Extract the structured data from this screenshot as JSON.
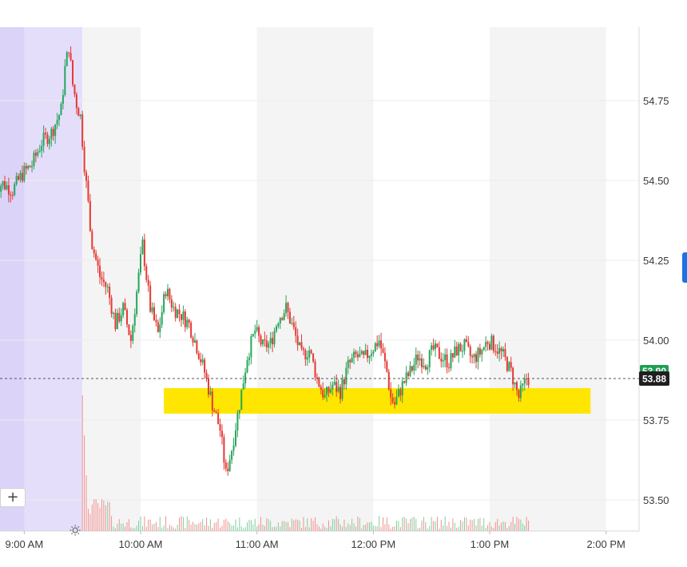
{
  "chart_data": {
    "type": "candlestick",
    "x_tick_labels": [
      "9:00 AM",
      "10:00 AM",
      "11:00 AM",
      "12:00 PM",
      "1:00 PM",
      "2:00 PM"
    ],
    "y_tick_labels": [
      "54.75",
      "54.50",
      "54.25",
      "54.00",
      "53.75",
      "53.50"
    ],
    "y_ticks": [
      54.75,
      54.5,
      54.25,
      54.0,
      53.75,
      53.5
    ],
    "ylim": [
      53.4,
      55.0
    ],
    "time_range": [
      "8:45 AM",
      "2:05 PM"
    ],
    "premarket_end": "9:30 AM",
    "current_price": "53.88",
    "current_price_value": 53.88,
    "upper_price_tag": "53.90",
    "highlight_zone": {
      "low": 53.77,
      "high": 53.85,
      "start": "10:12 AM",
      "end": "1:52 PM"
    },
    "price_path": [
      [
        "8:45 AM",
        54.48
      ],
      [
        "8:50 AM",
        54.49
      ],
      [
        "8:55 AM",
        54.47
      ],
      [
        "9:00 AM",
        54.52
      ],
      [
        "9:05 AM",
        54.55
      ],
      [
        "9:10 AM",
        54.62
      ],
      [
        "9:15 AM",
        54.65
      ],
      [
        "9:20 AM",
        54.72
      ],
      [
        "9:22 AM",
        54.85
      ],
      [
        "9:24 AM",
        54.92
      ],
      [
        "9:26 AM",
        54.8
      ],
      [
        "9:28 AM",
        54.74
      ],
      [
        "9:30 AM",
        54.7
      ],
      [
        "9:32 AM",
        54.55
      ],
      [
        "9:36 AM",
        54.3
      ],
      [
        "9:40 AM",
        54.2
      ],
      [
        "9:44 AM",
        54.16
      ],
      [
        "9:48 AM",
        54.05
      ],
      [
        "9:52 AM",
        54.1
      ],
      [
        "9:56 AM",
        54.0
      ],
      [
        "10:00 AM",
        54.2
      ],
      [
        "10:02 AM",
        54.3
      ],
      [
        "10:06 AM",
        54.1
      ],
      [
        "10:10 AM",
        54.02
      ],
      [
        "10:14 AM",
        54.16
      ],
      [
        "10:18 AM",
        54.1
      ],
      [
        "10:22 AM",
        54.08
      ],
      [
        "10:26 AM",
        54.05
      ],
      [
        "10:30 AM",
        53.98
      ],
      [
        "10:34 AM",
        53.9
      ],
      [
        "10:38 AM",
        53.8
      ],
      [
        "10:42 AM",
        53.72
      ],
      [
        "10:45 AM",
        53.58
      ],
      [
        "10:48 AM",
        53.66
      ],
      [
        "10:52 AM",
        53.8
      ],
      [
        "10:56 AM",
        53.95
      ],
      [
        "11:00 AM",
        54.03
      ],
      [
        "11:04 AM",
        53.98
      ],
      [
        "11:08 AM",
        53.99
      ],
      [
        "11:12 AM",
        54.07
      ],
      [
        "11:16 AM",
        54.1
      ],
      [
        "11:20 AM",
        54.03
      ],
      [
        "11:24 AM",
        53.95
      ],
      [
        "11:28 AM",
        53.97
      ],
      [
        "11:32 AM",
        53.88
      ],
      [
        "11:36 AM",
        53.82
      ],
      [
        "11:40 AM",
        53.86
      ],
      [
        "11:44 AM",
        53.84
      ],
      [
        "11:48 AM",
        53.92
      ],
      [
        "11:52 AM",
        53.95
      ],
      [
        "11:56 AM",
        53.94
      ],
      [
        "12:00 PM",
        53.97
      ],
      [
        "12:04 PM",
        54.0
      ],
      [
        "12:08 PM",
        53.9
      ],
      [
        "12:10 PM",
        53.82
      ],
      [
        "12:12 PM",
        53.8
      ],
      [
        "12:16 PM",
        53.86
      ],
      [
        "12:20 PM",
        53.9
      ],
      [
        "12:24 PM",
        53.95
      ],
      [
        "12:28 PM",
        53.93
      ],
      [
        "12:32 PM",
        53.97
      ],
      [
        "12:36 PM",
        53.95
      ],
      [
        "12:40 PM",
        53.93
      ],
      [
        "12:44 PM",
        53.97
      ],
      [
        "12:48 PM",
        53.98
      ],
      [
        "12:52 PM",
        53.94
      ],
      [
        "12:56 PM",
        53.96
      ],
      [
        "1:00 PM",
        54.0
      ],
      [
        "1:04 PM",
        53.98
      ],
      [
        "1:08 PM",
        53.95
      ],
      [
        "1:12 PM",
        53.9
      ],
      [
        "1:16 PM",
        53.82
      ],
      [
        "1:20 PM",
        53.88
      ]
    ],
    "grid": true,
    "shaded_columns": true,
    "legend": "none"
  },
  "controls": {
    "zoom_label": "+"
  }
}
